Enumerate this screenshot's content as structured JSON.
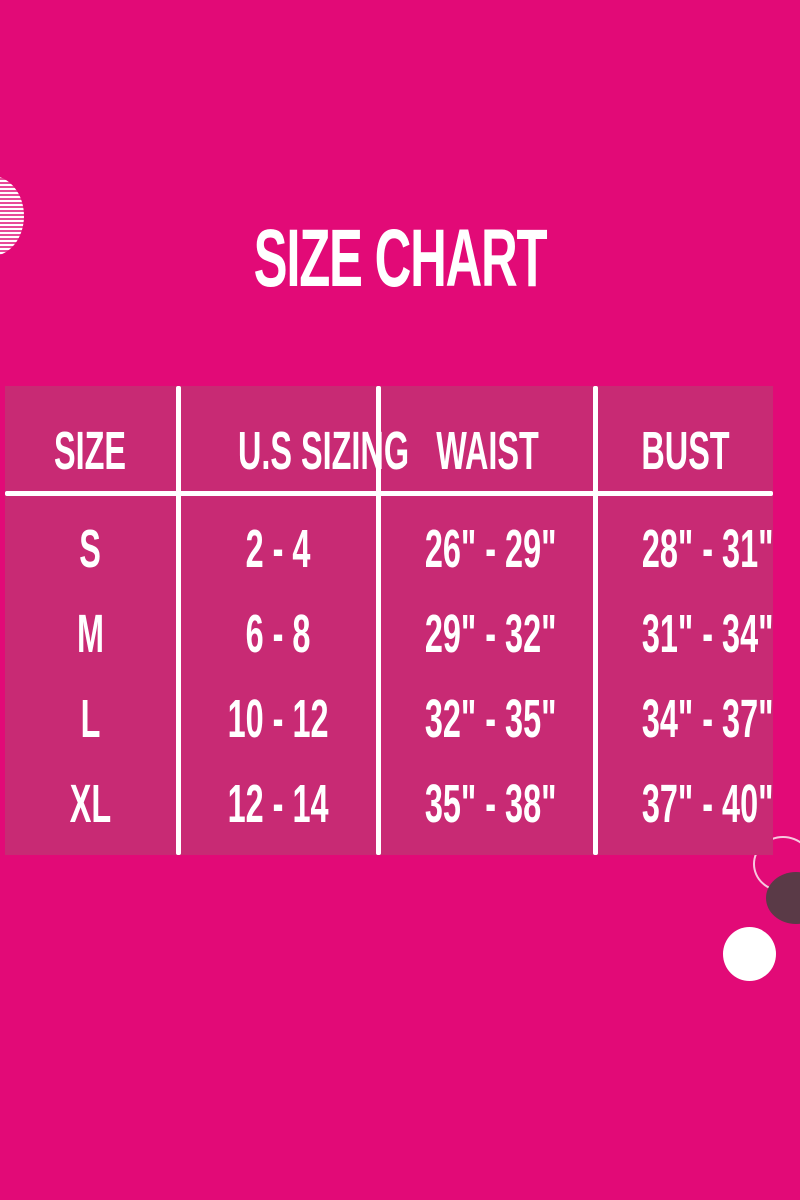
{
  "title": "SIZE CHART",
  "headers": [
    "SIZE",
    "U.S SIZING",
    "WAIST",
    "BUST"
  ],
  "rows": [
    [
      "S",
      "2 - 4",
      "26\" - 29\"",
      "28\" - 31\""
    ],
    [
      "M",
      "6 - 8",
      "29\" - 32\"",
      "31\" - 34\""
    ],
    [
      "L",
      "10 - 12",
      "32\" - 35\"",
      "34\" - 37\""
    ],
    [
      "XL",
      "12 - 14",
      "35\" - 38\"",
      "37\" - 40\""
    ]
  ],
  "colors": {
    "background": "#e20a77",
    "table": "#c82a74",
    "text": "#ffffff"
  }
}
